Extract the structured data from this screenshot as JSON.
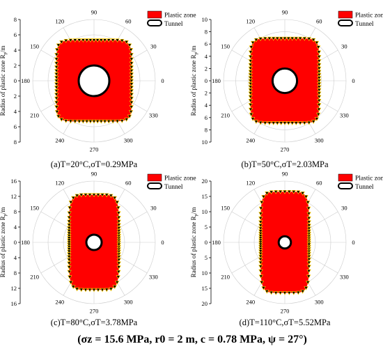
{
  "figure": {
    "caption": "(σz = 15.6 MPa, r0 = 2 m, c = 0.78 MPa, ψ = 27°)"
  },
  "colors": {
    "plastic": "#ff0000",
    "tunnel_fill": "#ffffff",
    "outline": "#000000",
    "marker": "#ffcc00",
    "grid": "#cccccc"
  },
  "chart_data": [
    {
      "type": "polar-area",
      "label": "(a)T=20°C,σT=0.29MPa",
      "ylabel": "Radius of plastic zone R",
      "ylabel_sub": "p",
      "ylabel_unit": "/m",
      "rmax": 8,
      "radial_ticks": [
        "8",
        "6",
        "4",
        "2",
        "0",
        "2",
        "4",
        "6",
        "8"
      ],
      "angle_ticks": [
        0,
        30,
        60,
        90,
        120,
        150,
        180,
        210,
        240,
        270,
        300,
        330
      ],
      "legend": [
        "Plastic zone",
        "Tunnel"
      ],
      "tunnel_radius": 2,
      "plastic_zone": {
        "A": 5.3,
        "B": 4.9,
        "C": 5.7,
        "n": 8
      }
    },
    {
      "type": "polar-area",
      "label": "(b)T=50°C,σT=2.03MPa",
      "ylabel": "Radius of plastic zone R",
      "ylabel_sub": "p",
      "ylabel_unit": "/m",
      "rmax": 10,
      "radial_ticks": [
        "10",
        "8",
        "6",
        "4",
        "2",
        "0",
        "2",
        "4",
        "6",
        "8",
        "10"
      ],
      "angle_ticks": [
        0,
        30,
        60,
        90,
        120,
        150,
        180,
        210,
        240,
        270,
        300,
        330
      ],
      "legend": [
        "Plastic zone",
        "Tunnel"
      ],
      "tunnel_radius": 2,
      "plastic_zone": {
        "A": 6.9,
        "B": 5.6,
        "C": 7.1,
        "n": 8
      }
    },
    {
      "type": "polar-area",
      "label": "(c)T=80°C,σT=3.78MPa",
      "ylabel": "Radius of plastic zone R",
      "ylabel_sub": "p",
      "ylabel_unit": "/m",
      "rmax": 16,
      "radial_ticks": [
        "16",
        "12",
        "8",
        "4",
        "0",
        "4",
        "8",
        "12",
        "16"
      ],
      "angle_ticks": [
        0,
        30,
        60,
        90,
        120,
        150,
        180,
        210,
        240,
        270,
        300,
        330
      ],
      "legend": [
        "Plastic zone",
        "Tunnel"
      ],
      "tunnel_radius": 2,
      "plastic_zone": {
        "A": 12.4,
        "B": 6.5,
        "C": 13.8,
        "n": 6
      }
    },
    {
      "type": "polar-area",
      "label": "(d)T=110°C,σT=5.52MPa",
      "ylabel": "Radius of plastic zone R",
      "ylabel_sub": "p",
      "ylabel_unit": "/m",
      "rmax": 20,
      "radial_ticks": [
        "20",
        "15",
        "10",
        "5",
        "0",
        "5",
        "10",
        "15",
        "20"
      ],
      "angle_ticks": [
        0,
        30,
        60,
        90,
        120,
        150,
        180,
        210,
        240,
        270,
        300,
        330
      ],
      "legend": [
        "Plastic zone",
        "Tunnel"
      ],
      "tunnel_radius": 2,
      "plastic_zone": {
        "A": 16.5,
        "B": 7.9,
        "C": 16.8,
        "n": 6
      }
    }
  ]
}
